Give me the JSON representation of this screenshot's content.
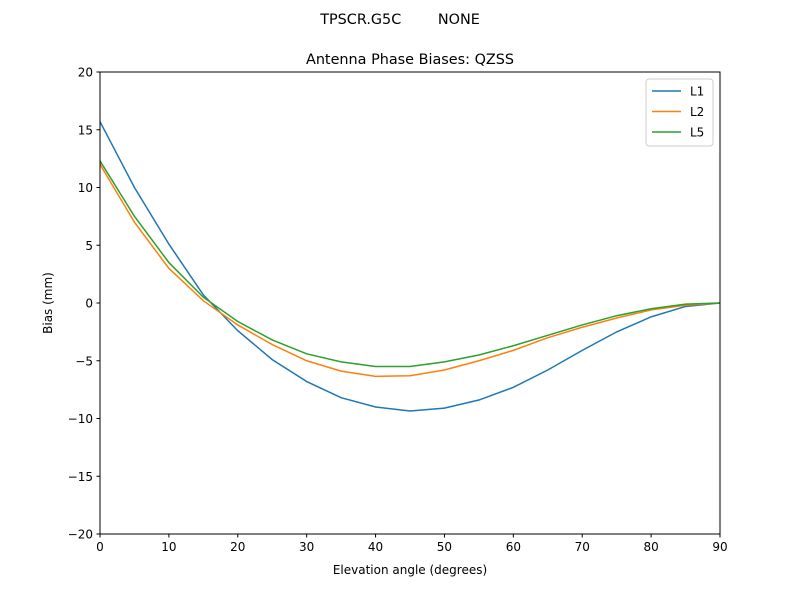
{
  "chart_data": {
    "type": "line",
    "suptitle": "TPSCR.G5C        NONE",
    "title": "Antenna Phase Biases: QZSS",
    "xlabel": "Elevation angle (degrees)",
    "ylabel": "Bias (mm)",
    "xlim": [
      0,
      90
    ],
    "ylim": [
      -20,
      20
    ],
    "xticks": [
      0,
      10,
      20,
      30,
      40,
      50,
      60,
      70,
      80,
      90
    ],
    "yticks": [
      -20,
      -15,
      -10,
      -5,
      0,
      5,
      10,
      15,
      20
    ],
    "grid": false,
    "legend_placement": "top-right",
    "x": [
      0,
      5,
      10,
      15,
      20,
      25,
      30,
      35,
      40,
      45,
      50,
      55,
      60,
      65,
      70,
      75,
      80,
      85,
      90
    ],
    "series": [
      {
        "name": "L1",
        "color": "#1f77b4",
        "values": [
          15.7,
          10.0,
          5.1,
          0.7,
          -2.4,
          -4.9,
          -6.8,
          -8.2,
          -9.0,
          -9.35,
          -9.1,
          -8.4,
          -7.3,
          -5.8,
          -4.1,
          -2.5,
          -1.2,
          -0.3,
          0.0
        ]
      },
      {
        "name": "L2",
        "color": "#ff7f0e",
        "values": [
          12.0,
          7.0,
          3.0,
          0.2,
          -1.9,
          -3.6,
          -5.0,
          -5.9,
          -6.35,
          -6.3,
          -5.8,
          -5.0,
          -4.1,
          -3.0,
          -2.1,
          -1.3,
          -0.6,
          -0.2,
          0.0
        ]
      },
      {
        "name": "L5",
        "color": "#2ca02c",
        "values": [
          12.3,
          7.5,
          3.5,
          0.5,
          -1.6,
          -3.2,
          -4.4,
          -5.1,
          -5.5,
          -5.5,
          -5.1,
          -4.5,
          -3.7,
          -2.8,
          -1.9,
          -1.1,
          -0.5,
          -0.1,
          0.0
        ]
      }
    ]
  }
}
